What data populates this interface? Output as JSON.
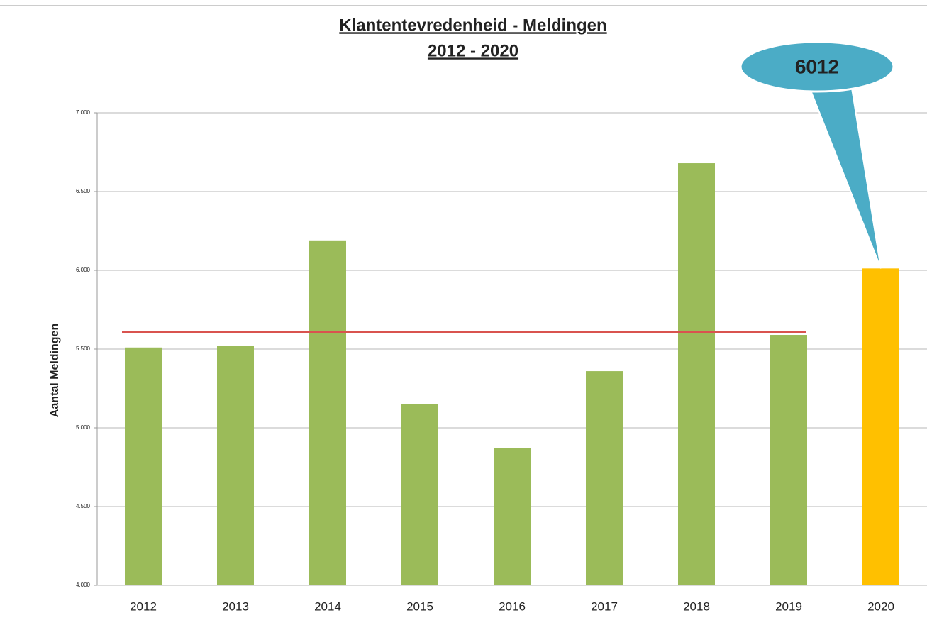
{
  "chart_data": {
    "type": "bar",
    "title": "Klantentevredenheid - Meldingen",
    "subtitle": "2012 - 2020",
    "y_label": "Aantal Meldingen",
    "categories": [
      "2012",
      "2013",
      "2014",
      "2015",
      "2016",
      "2017",
      "2018",
      "2019",
      "2020"
    ],
    "values": [
      5510,
      5520,
      6190,
      5150,
      4870,
      5360,
      6680,
      5590,
      6012
    ],
    "colors": [
      "#9bbb59",
      "#9bbb59",
      "#9bbb59",
      "#9bbb59",
      "#9bbb59",
      "#9bbb59",
      "#9bbb59",
      "#9bbb59",
      "#ffc000"
    ],
    "ylim": [
      4000,
      7000
    ],
    "yticks": [
      {
        "value": 4000,
        "label": "4.000"
      },
      {
        "value": 4500,
        "label": "4.500"
      },
      {
        "value": 5000,
        "label": "5.000"
      },
      {
        "value": 5500,
        "label": "5.500"
      },
      {
        "value": 6000,
        "label": "6.000"
      },
      {
        "value": 6500,
        "label": "6.500"
      },
      {
        "value": 7000,
        "label": "7.000"
      }
    ],
    "grid": true,
    "reference_line": {
      "value": 5610,
      "color": "#d9534f"
    },
    "callout_color": "#4bacc6"
  }
}
